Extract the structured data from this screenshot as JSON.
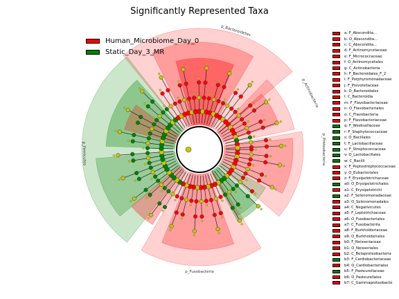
{
  "chart_data": {
    "type": "cladogram",
    "title": "Significantly Represented Taxa",
    "legend_placement": "top-left",
    "groups": [
      {
        "name": "Human_Microbiome_Day_0",
        "color": "#ff0000"
      },
      {
        "name": "Static_Day_3_MR",
        "color": "#008000"
      }
    ],
    "clade_labels": [
      {
        "text": "p_Bacteroidetes",
        "group": "Human_Microbiome_Day_0"
      },
      {
        "text": "p_Actinobacteria",
        "group": "Human_Microbiome_Day_0"
      },
      {
        "text": "p_Proteobacteria",
        "group": "Human_Microbiome_Day_0"
      },
      {
        "text": "p_Fusobacteria",
        "group": "Human_Microbiome_Day_0"
      },
      {
        "text": "p_Firmicutes",
        "group": "Static_Day_3_MR"
      }
    ],
    "key": [
      {
        "code": "a",
        "label": "F_Abscondita...",
        "group": "Human_Microbiome_Day_0"
      },
      {
        "code": "b",
        "label": "O_Abscondita...",
        "group": "Human_Microbiome_Day_0"
      },
      {
        "code": "c",
        "label": "C_Abscondita...",
        "group": "Human_Microbiome_Day_0"
      },
      {
        "code": "d",
        "label": "F_Actinomycetaceae",
        "group": "Human_Microbiome_Day_0"
      },
      {
        "code": "e",
        "label": "F_Micrococcaceae",
        "group": "Human_Microbiome_Day_0"
      },
      {
        "code": "f",
        "label": "O_Actinomycetales",
        "group": "Human_Microbiome_Day_0"
      },
      {
        "code": "g",
        "label": "C_Actinobacteria",
        "group": "Human_Microbiome_Day_0"
      },
      {
        "code": "h",
        "label": "F_Bacteroidales_F_2",
        "group": "Human_Microbiome_Day_0"
      },
      {
        "code": "i",
        "label": "F_Porphyromonadaceae",
        "group": "Human_Microbiome_Day_0"
      },
      {
        "code": "j",
        "label": "F_Prevotellaceae",
        "group": "Human_Microbiome_Day_0"
      },
      {
        "code": "k",
        "label": "O_Bacteroidales",
        "group": "Human_Microbiome_Day_0"
      },
      {
        "code": "l",
        "label": "C_Bacteroidia",
        "group": "Human_Microbiome_Day_0"
      },
      {
        "code": "m",
        "label": "F_Flavobacteriaceae",
        "group": "Human_Microbiome_Day_0"
      },
      {
        "code": "n",
        "label": "O_Flavobacteriales",
        "group": "Human_Microbiome_Day_0"
      },
      {
        "code": "o",
        "label": "C_Flavobacteria",
        "group": "Human_Microbiome_Day_0"
      },
      {
        "code": "p",
        "label": "F_Flavobacteriaceae",
        "group": "Human_Microbiome_Day_0"
      },
      {
        "code": "q",
        "label": "F_Weeksellaceae",
        "group": "Static_Day_3_MR"
      },
      {
        "code": "r",
        "label": "F_Staphylococcaceae",
        "group": "Static_Day_3_MR"
      },
      {
        "code": "s",
        "label": "O_Bacillales",
        "group": "Static_Day_3_MR"
      },
      {
        "code": "t",
        "label": "F_Lactobacillaceae",
        "group": "Static_Day_3_MR"
      },
      {
        "code": "u",
        "label": "F_Streptococcaceae",
        "group": "Static_Day_3_MR"
      },
      {
        "code": "v",
        "label": "O_Lactobacillales",
        "group": "Static_Day_3_MR"
      },
      {
        "code": "w",
        "label": "C_Bacilli",
        "group": "Static_Day_3_MR"
      },
      {
        "code": "x",
        "label": "F_Peptostreptococcaceae",
        "group": "Human_Microbiome_Day_0"
      },
      {
        "code": "y",
        "label": "O_Eubacteriales",
        "group": "Human_Microbiome_Day_0"
      },
      {
        "code": "z",
        "label": "F_Erysipelotrichaceae",
        "group": "Human_Microbiome_Day_0"
      },
      {
        "code": "a0",
        "label": "O_Erysipelotrichales",
        "group": "Static_Day_3_MR"
      },
      {
        "code": "a1",
        "label": "C_Erysipelotrichi",
        "group": "Human_Microbiome_Day_0"
      },
      {
        "code": "a2",
        "label": "F_Selenomonadaceae",
        "group": "Static_Day_3_MR"
      },
      {
        "code": "a3",
        "label": "O_Selenomonadales",
        "group": "Human_Microbiome_Day_0"
      },
      {
        "code": "a4",
        "label": "C_Negativicutes",
        "group": "Human_Microbiome_Day_0"
      },
      {
        "code": "a5",
        "label": "F_Leptotrichiaceae",
        "group": "Human_Microbiome_Day_0"
      },
      {
        "code": "a6",
        "label": "O_Fusobacteriales",
        "group": "Human_Microbiome_Day_0"
      },
      {
        "code": "a7",
        "label": "C_Fusobacteriia",
        "group": "Human_Microbiome_Day_0"
      },
      {
        "code": "a8",
        "label": "F_Burkholderiaceae",
        "group": "Human_Microbiome_Day_0"
      },
      {
        "code": "a9",
        "label": "O_Burkholderiales",
        "group": "Human_Microbiome_Day_0"
      },
      {
        "code": "b0",
        "label": "F_Neisseriaceae",
        "group": "Human_Microbiome_Day_0"
      },
      {
        "code": "b1",
        "label": "O_Neisseriales",
        "group": "Human_Microbiome_Day_0"
      },
      {
        "code": "b2",
        "label": "C_Betaproteobacteria",
        "group": "Human_Microbiome_Day_0"
      },
      {
        "code": "b3",
        "label": "F_Cardiobacteriaceae",
        "group": "Static_Day_3_MR"
      },
      {
        "code": "b4",
        "label": "O_Cardiobacteriales",
        "group": "Human_Microbiome_Day_0"
      },
      {
        "code": "b5",
        "label": "F_Pasteurellaceae",
        "group": "Static_Day_3_MR"
      },
      {
        "code": "b6",
        "label": "O_Pasteurellales",
        "group": "Human_Microbiome_Day_0"
      },
      {
        "code": "b7",
        "label": "C_Gammaproteobacte",
        "group": "Human_Microbiome_Day_0"
      }
    ]
  }
}
